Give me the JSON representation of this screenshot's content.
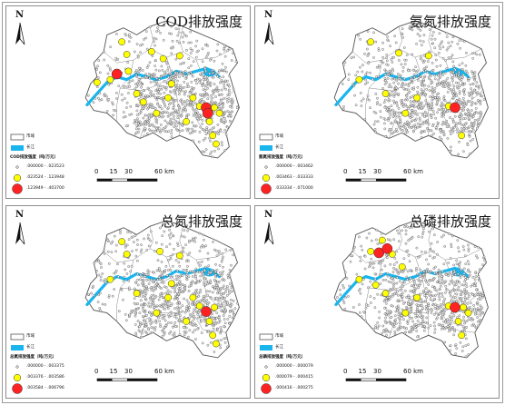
{
  "colors": {
    "river": "#19b5ee",
    "outline": "#555555",
    "dot_small": "#f0f0f0",
    "dot_mid": "#ffff00",
    "dot_large": "#ff2222"
  },
  "scale_bar": {
    "labels": [
      "0",
      "15",
      "30",
      "60 km"
    ]
  },
  "north_arrow": {
    "label": "N"
  },
  "panels": [
    {
      "title": "COD排放强度",
      "legend": {
        "county_label": "市域",
        "river_label": "长江",
        "intensity_title": "COD排放强度（吨/万元）",
        "classes": [
          ".000000 - .023523",
          ".023524 - .123948",
          ".123949 - .403700"
        ]
      },
      "large_sites": [
        [
          0.24,
          0.38
        ],
        [
          0.78,
          0.62
        ],
        [
          0.79,
          0.66
        ]
      ],
      "mid_sites": [
        [
          0.27,
          0.15
        ],
        [
          0.3,
          0.24
        ],
        [
          0.45,
          0.22
        ],
        [
          0.52,
          0.27
        ],
        [
          0.62,
          0.25
        ],
        [
          0.12,
          0.44
        ],
        [
          0.2,
          0.42
        ],
        [
          0.36,
          0.52
        ],
        [
          0.4,
          0.58
        ],
        [
          0.55,
          0.55
        ],
        [
          0.7,
          0.55
        ],
        [
          0.74,
          0.61
        ],
        [
          0.83,
          0.62
        ],
        [
          0.86,
          0.66
        ],
        [
          0.66,
          0.72
        ],
        [
          0.8,
          0.72
        ],
        [
          0.82,
          0.82
        ],
        [
          0.84,
          0.88
        ],
        [
          0.57,
          0.45
        ],
        [
          0.48,
          0.66
        ],
        [
          0.31,
          0.36
        ]
      ]
    },
    {
      "title": "氨氮排放强度",
      "legend": {
        "county_label": "市域",
        "river_label": "长江",
        "intensity_title": "氨氮排放强度（吨/万元）",
        "classes": [
          ".000000 - .003462",
          ".003463 - .033333",
          ".033334 - .071000"
        ]
      },
      "large_sites": [
        [
          0.78,
          0.62
        ]
      ],
      "mid_sites": [
        [
          0.27,
          0.15
        ],
        [
          0.44,
          0.23
        ],
        [
          0.62,
          0.25
        ],
        [
          0.2,
          0.42
        ],
        [
          0.36,
          0.52
        ],
        [
          0.55,
          0.55
        ],
        [
          0.74,
          0.61
        ],
        [
          0.82,
          0.82
        ],
        [
          0.48,
          0.66
        ]
      ]
    },
    {
      "title": "总氮排放强度",
      "legend": {
        "county_label": "市域",
        "river_label": "长江",
        "intensity_title": "总氮排放强度（吨/万元）",
        "classes": [
          ".000000 - .003375",
          ".003376 - .003586",
          ".003584 - .006796"
        ]
      },
      "large_sites": [
        [
          0.78,
          0.65
        ]
      ],
      "mid_sites": [
        [
          0.27,
          0.15
        ],
        [
          0.3,
          0.24
        ],
        [
          0.5,
          0.22
        ],
        [
          0.62,
          0.25
        ],
        [
          0.2,
          0.42
        ],
        [
          0.36,
          0.52
        ],
        [
          0.55,
          0.55
        ],
        [
          0.7,
          0.55
        ],
        [
          0.74,
          0.61
        ],
        [
          0.83,
          0.62
        ],
        [
          0.66,
          0.72
        ],
        [
          0.8,
          0.72
        ],
        [
          0.82,
          0.82
        ],
        [
          0.84,
          0.88
        ],
        [
          0.57,
          0.45
        ],
        [
          0.48,
          0.66
        ]
      ]
    },
    {
      "title": "总磷排放强度",
      "legend": {
        "county_label": "市域",
        "river_label": "长江",
        "intensity_title": "总磷排放强度（吨/万元）",
        "classes": [
          ".000000 - .000079",
          ".000079 - .000415",
          ".000416 - .000275"
        ]
      },
      "large_sites": [
        [
          0.32,
          0.23
        ],
        [
          0.37,
          0.2
        ],
        [
          0.78,
          0.62
        ]
      ],
      "mid_sites": [
        [
          0.34,
          0.14
        ],
        [
          0.27,
          0.22
        ],
        [
          0.4,
          0.24
        ],
        [
          0.46,
          0.33
        ],
        [
          0.2,
          0.42
        ],
        [
          0.36,
          0.52
        ],
        [
          0.55,
          0.55
        ],
        [
          0.74,
          0.61
        ],
        [
          0.83,
          0.62
        ],
        [
          0.86,
          0.66
        ],
        [
          0.8,
          0.72
        ],
        [
          0.82,
          0.82
        ],
        [
          0.48,
          0.66
        ],
        [
          0.3,
          0.46
        ]
      ]
    }
  ]
}
